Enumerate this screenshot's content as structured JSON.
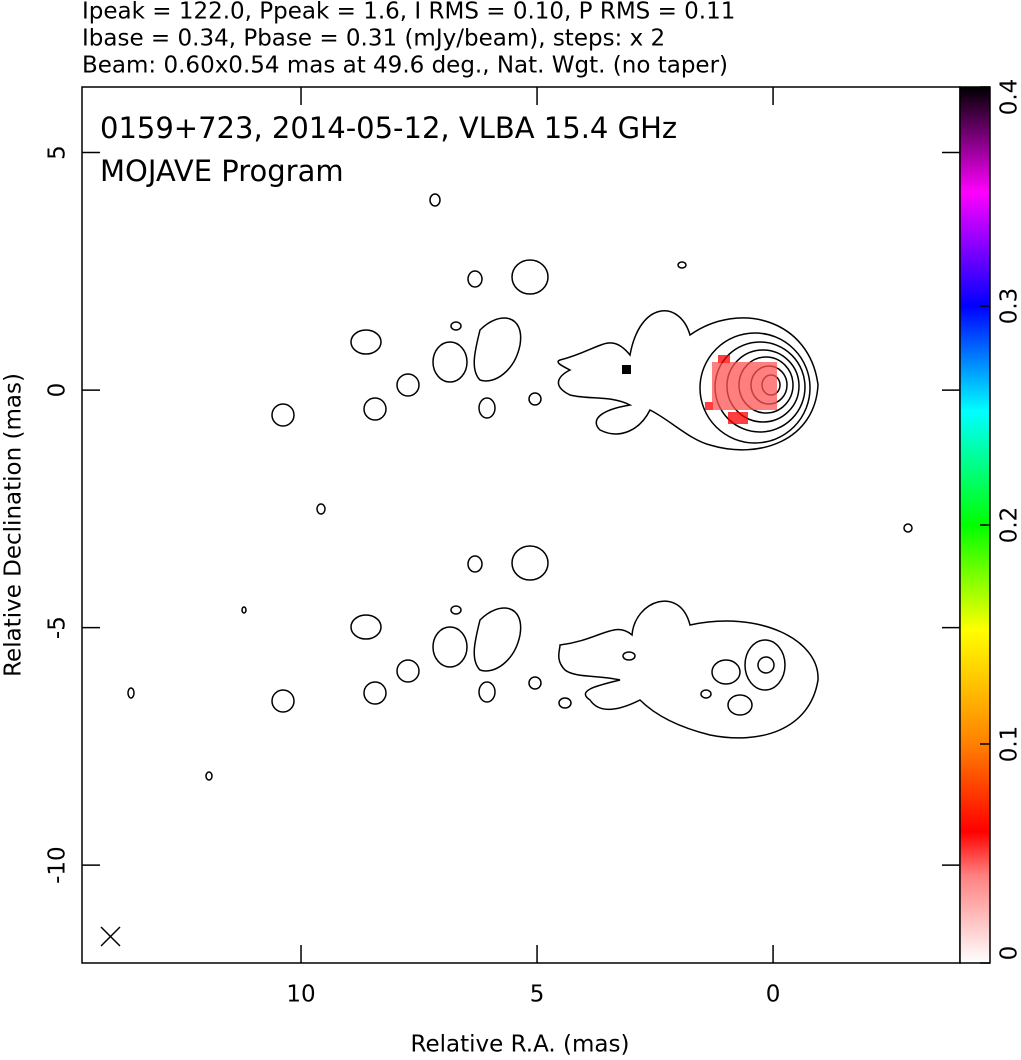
{
  "chart_data": {
    "type": "contour",
    "header": [
      "Ipeak = 122.0, Ppeak = 1.6, I RMS = 0.10, P RMS = 0.11",
      "Ibase = 0.34, Pbase = 0.31 (mJy/beam), steps: x 2",
      "Beam: 0.60x0.54 mas at 49.6 deg., Nat. Wgt. (no taper)"
    ],
    "annotations": [
      "0159+723, 2014-05-12, VLBA 15.4 GHz",
      "MOJAVE Program"
    ],
    "x_label": "Relative R.A. (mas)",
    "y_label": "Relative Declination (mas)",
    "xlim": [
      14.64,
      -3.96
    ],
    "xticks": [
      10,
      5,
      0
    ],
    "ylim": [
      -12.06,
      6.38
    ],
    "yticks": [
      5,
      0,
      -5,
      -10
    ],
    "colorbar": {
      "lim": [
        0,
        0.4
      ],
      "ticks": [
        0,
        0.1,
        0.2,
        0.3,
        0.4
      ]
    }
  }
}
